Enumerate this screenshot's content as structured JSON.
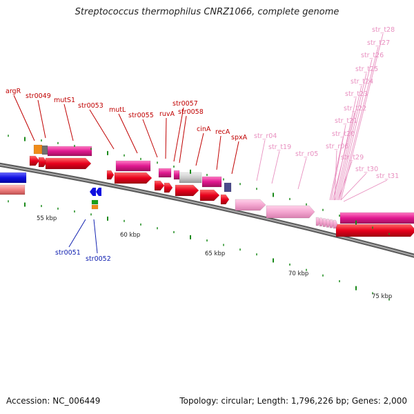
{
  "title": "Streptococcus thermophilus CNRZ1066, complete genome",
  "footer": {
    "accession": "Accession: NC_006449",
    "summary": "Topology: circular; Length: 1,796,226 bp; Genes: 2,000"
  },
  "scale_labels": [
    "55 kbp",
    "60 kbp",
    "65 kbp",
    "70 kbp",
    "75 kbp"
  ],
  "colors": {
    "backbone": "#888888",
    "cds_forward": "#e8001c",
    "gene_magenta": "#e01890",
    "trna": "#f4a6d0",
    "label_red": "#c00000",
    "label_blue": "#1020b0",
    "label_pink": "#e890c0",
    "tick_green": "#1a8a1a",
    "reverse_blue": "#1010e0",
    "reverse_salmon": "#f08080"
  },
  "gene_labels": {
    "red": [
      "argR",
      "str0049",
      "mutS1",
      "str0053",
      "mutL",
      "str0055",
      "ruvA",
      "str0057",
      "str0058",
      "cinA",
      "recA",
      "spxA"
    ],
    "blue": [
      "str0051",
      "str0052"
    ],
    "pink": [
      "str_r04",
      "str_t19",
      "str_r05",
      "str_r06",
      "str_t29",
      "str_t30",
      "str_t31",
      "str_t20",
      "str_t21",
      "str_t22",
      "str_t23",
      "str_t24",
      "str_t25",
      "str_t26",
      "str_t27",
      "str_t28"
    ]
  }
}
